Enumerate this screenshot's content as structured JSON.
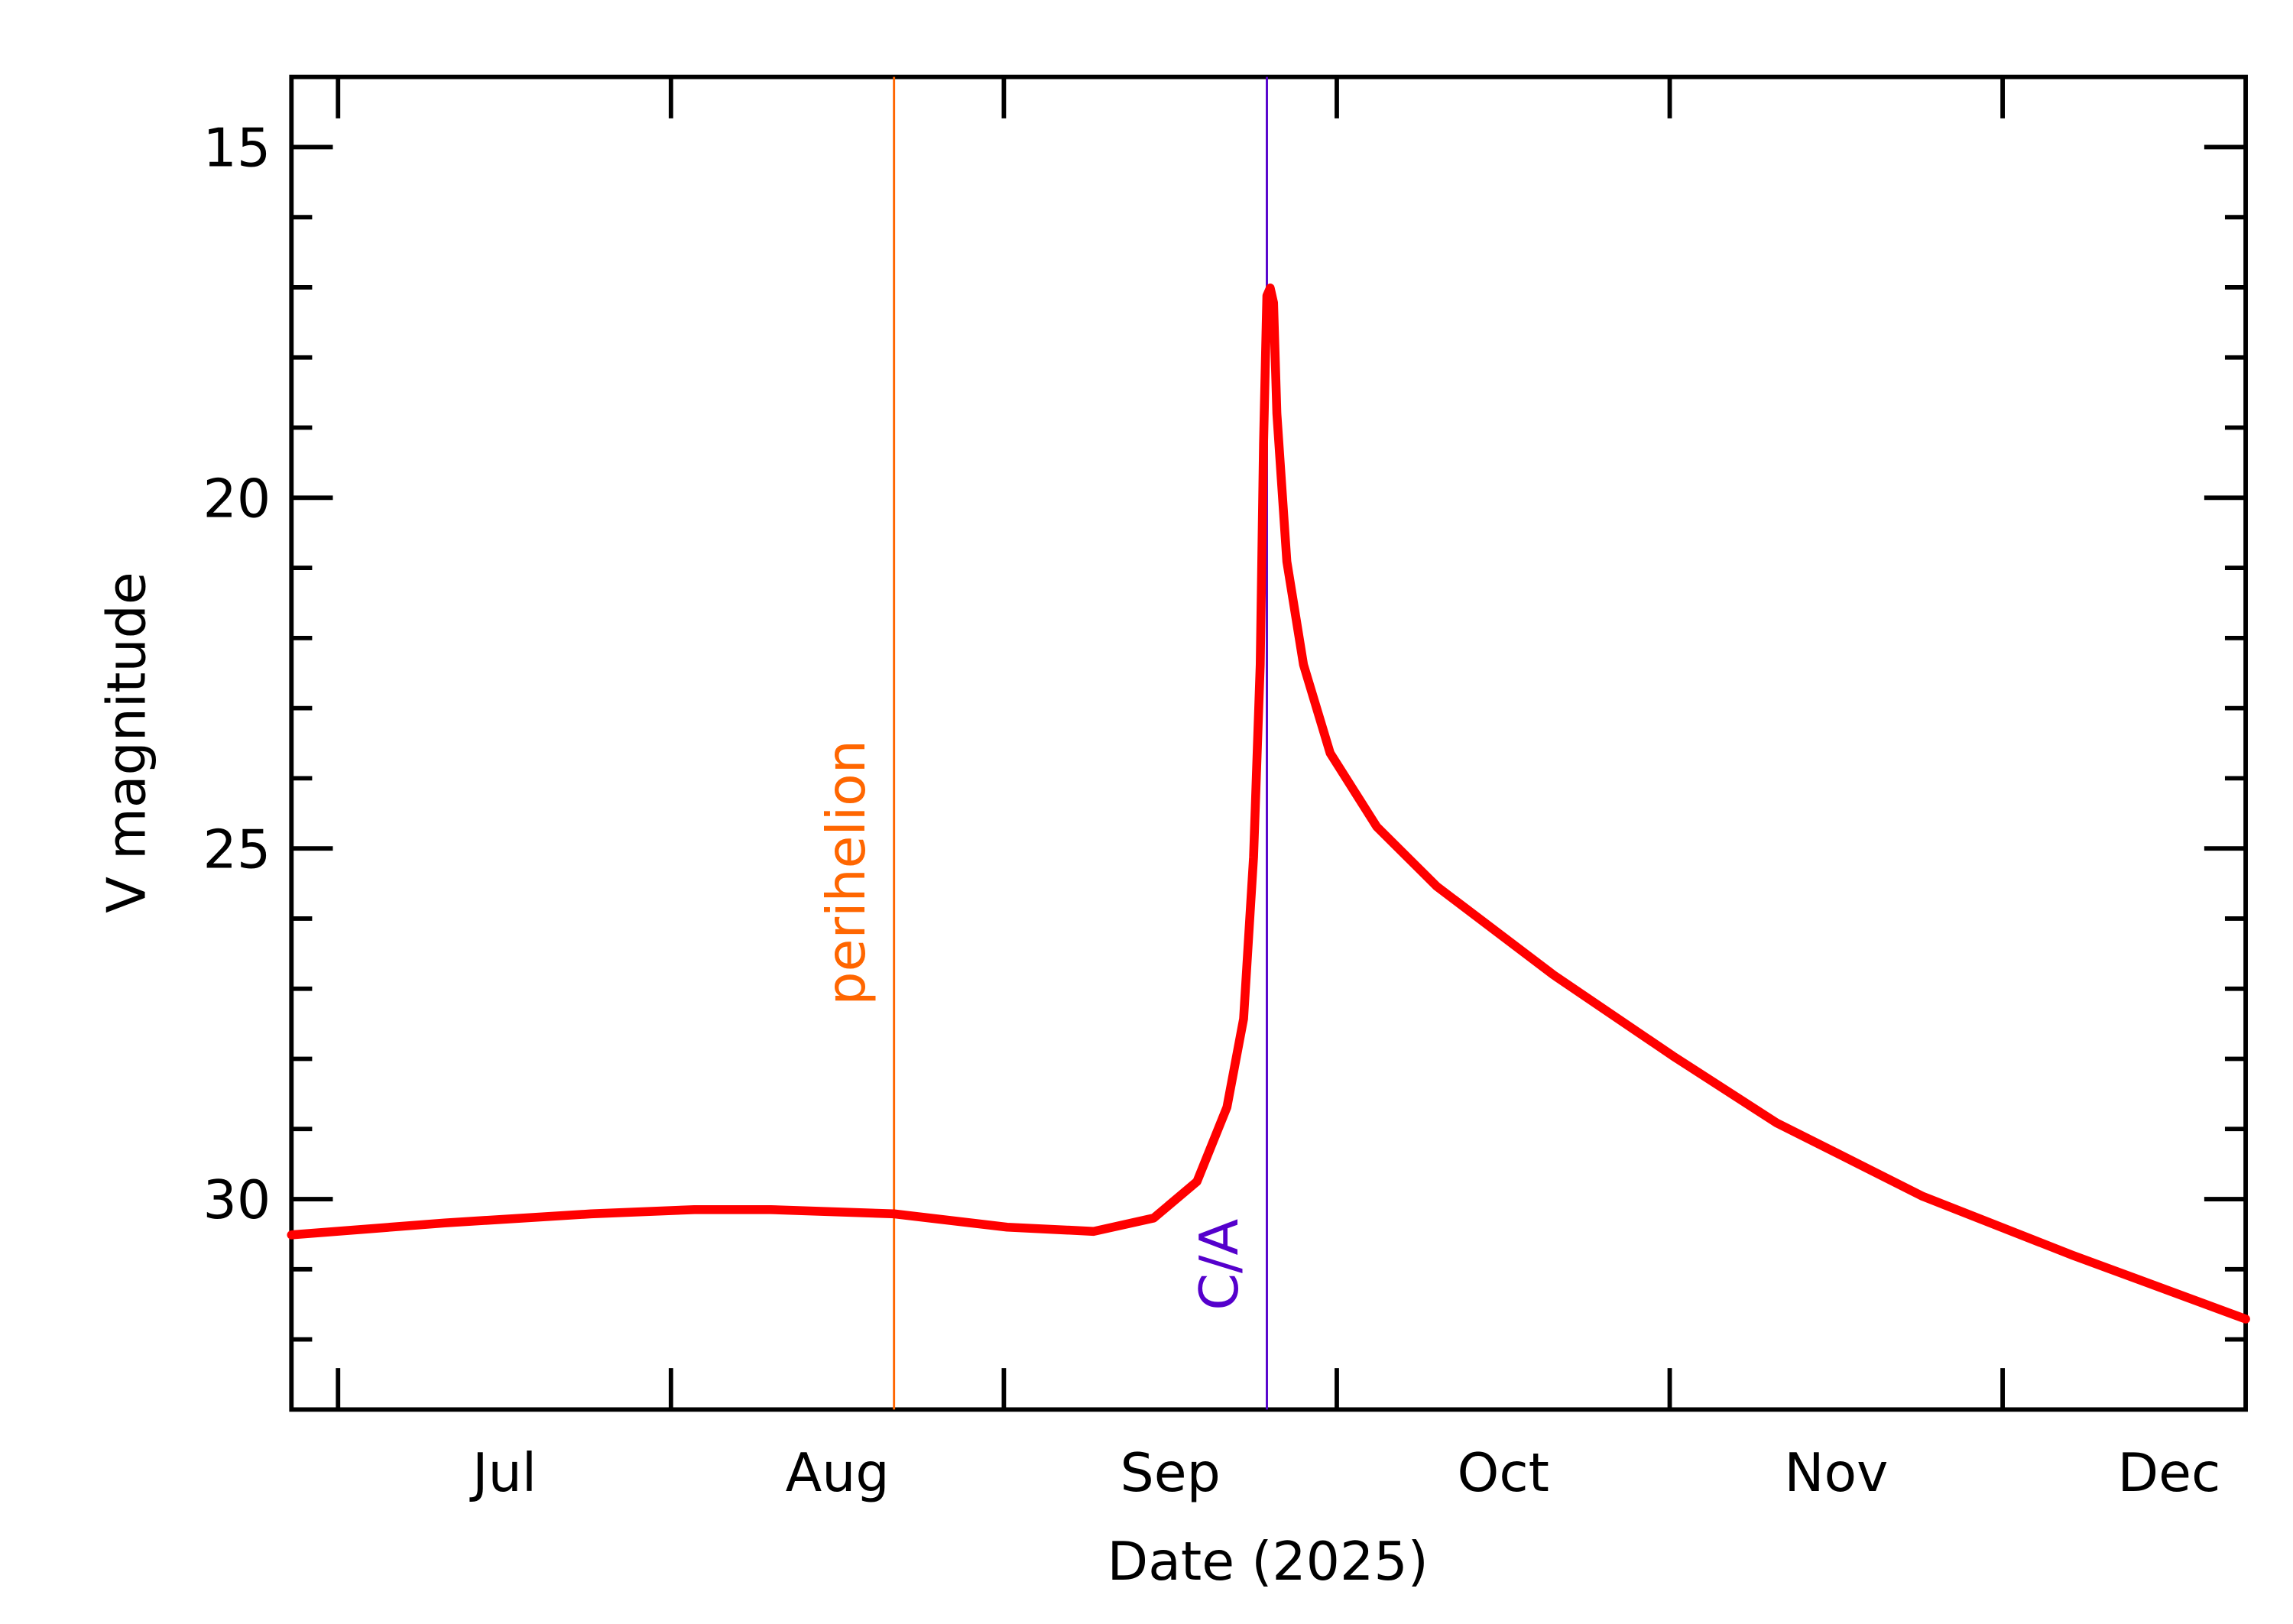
{
  "chart_data": {
    "type": "line",
    "x_label": "Date (2025)",
    "y_label": "V magnitude",
    "xlim": [
      6.86,
      12.73
    ],
    "xticks": [
      {
        "value": 7,
        "label": "Jul"
      },
      {
        "value": 8,
        "label": "Aug"
      },
      {
        "value": 9,
        "label": "Sep"
      },
      {
        "value": 10,
        "label": "Oct"
      },
      {
        "value": 11,
        "label": "Nov"
      },
      {
        "value": 12,
        "label": "Dec"
      }
    ],
    "ylim": [
      14,
      33
    ],
    "y_inverted": true,
    "yticks": [
      15,
      20,
      25,
      30
    ],
    "yminorticks": [
      16,
      17,
      18,
      19,
      21,
      22,
      23,
      24,
      26,
      27,
      28,
      29,
      31,
      32
    ],
    "x": [
      6.86,
      7.32,
      7.76,
      8.07,
      8.3,
      8.67,
      9.01,
      9.27,
      9.45,
      9.58,
      9.67,
      9.72,
      9.75,
      9.77,
      9.78,
      9.79,
      9.8,
      9.81,
      9.82,
      9.85,
      9.9,
      9.98,
      10.12,
      10.3,
      10.65,
      11.01,
      11.32,
      11.76,
      12.21,
      12.73
    ],
    "series": [
      {
        "color": "#ff0000",
        "values": [
          30.51,
          30.34,
          30.21,
          30.15,
          30.15,
          30.21,
          30.4,
          30.46,
          30.27,
          29.75,
          28.69,
          27.43,
          25.12,
          22.38,
          19.22,
          17.12,
          17.01,
          17.22,
          18.8,
          20.91,
          22.38,
          23.64,
          24.69,
          25.54,
          26.8,
          27.96,
          28.91,
          29.96,
          30.8,
          31.71
        ]
      }
    ],
    "vlines": [
      {
        "x": 8.67,
        "label": "perihelion",
        "color": "#ff6600"
      },
      {
        "x": 9.79,
        "label": "C/A",
        "color": "#5500cc"
      }
    ]
  }
}
